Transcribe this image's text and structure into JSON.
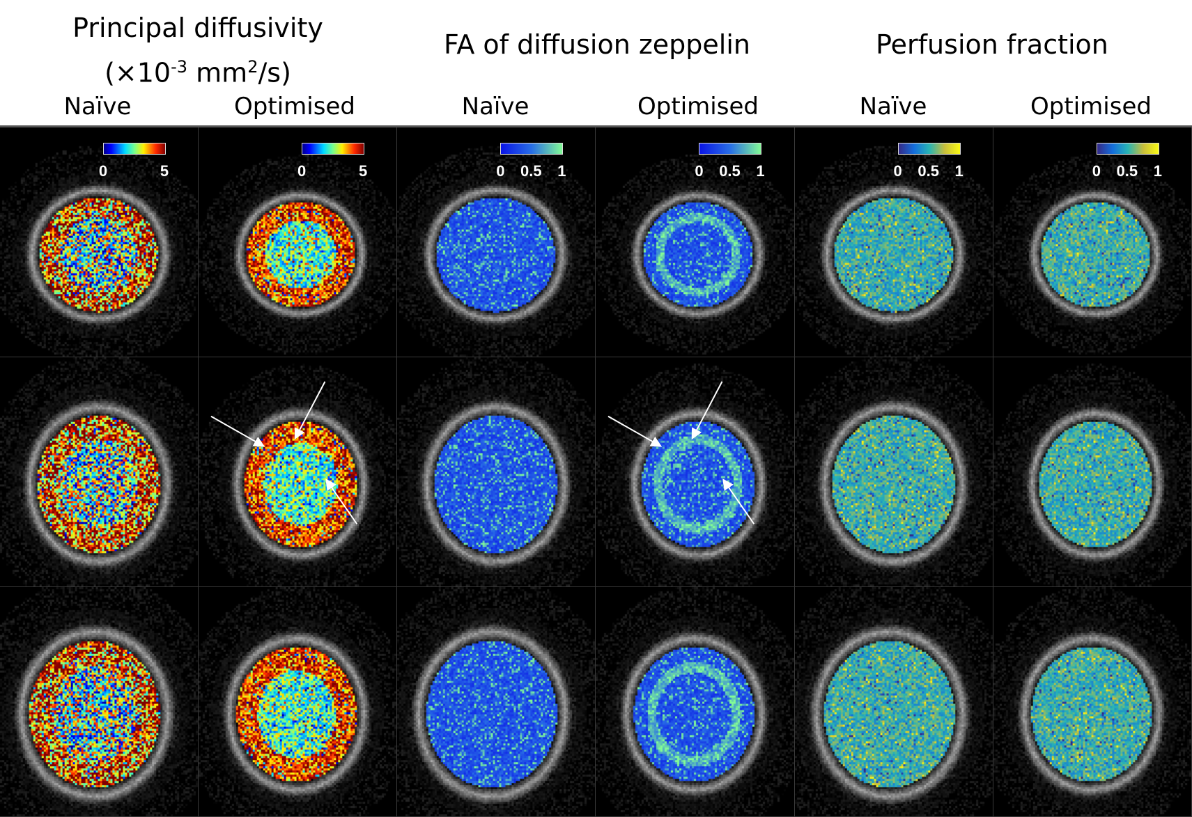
{
  "headers": [
    {
      "title_line1": "Principal diffusivity",
      "title_line2_prefix": "(×10",
      "title_line2_sup1": "-3",
      "title_line2_mid": " mm",
      "title_line2_sup2": "2",
      "title_line2_suffix": "/s)",
      "colormap": "jet",
      "ticks": [
        "0",
        "5"
      ]
    },
    {
      "title_line1": "FA of diffusion zeppelin",
      "colormap": "blue-green",
      "ticks": [
        "0",
        "0.5",
        "1"
      ]
    },
    {
      "title_line1": "Perfusion fraction",
      "colormap": "parula",
      "ticks": [
        "0",
        "0.5",
        "1"
      ]
    }
  ],
  "columns": [
    "Naïve",
    "Optimised",
    "Naïve",
    "Optimised",
    "Naïve",
    "Optimised"
  ],
  "rows": 3,
  "arrows_panels": [
    "row2-optimised-diffusivity",
    "row2-optimised-fa"
  ],
  "colors": {
    "background": "#000000",
    "arrow": "#ffffff"
  }
}
